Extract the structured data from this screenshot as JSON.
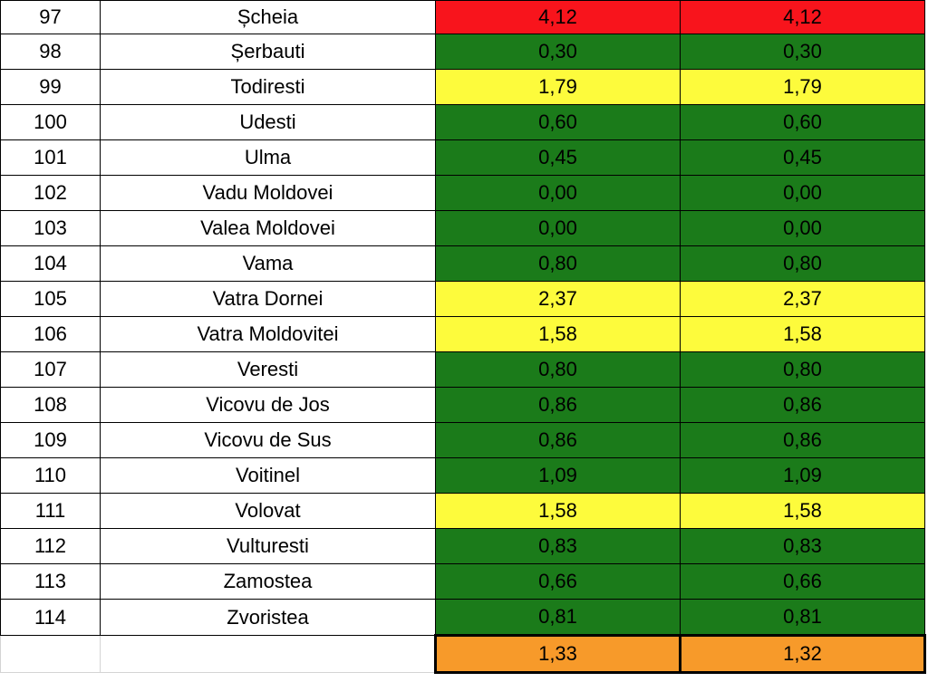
{
  "colors": {
    "red": "#f8141c",
    "green": "#1b7b1a",
    "yellow": "#fdfb3c",
    "orange": "#f79a2a"
  },
  "rows": [
    {
      "num": "97",
      "name": "Șcheia",
      "v1": "4,12",
      "v2": "4,12",
      "status": "red"
    },
    {
      "num": "98",
      "name": "Șerbauti",
      "v1": "0,30",
      "v2": "0,30",
      "status": "green"
    },
    {
      "num": "99",
      "name": "Todiresti",
      "v1": "1,79",
      "v2": "1,79",
      "status": "yellow"
    },
    {
      "num": "100",
      "name": "Udesti",
      "v1": "0,60",
      "v2": "0,60",
      "status": "green"
    },
    {
      "num": "101",
      "name": "Ulma",
      "v1": "0,45",
      "v2": "0,45",
      "status": "green"
    },
    {
      "num": "102",
      "name": "Vadu Moldovei",
      "v1": "0,00",
      "v2": "0,00",
      "status": "green"
    },
    {
      "num": "103",
      "name": "Valea Moldovei",
      "v1": "0,00",
      "v2": "0,00",
      "status": "green"
    },
    {
      "num": "104",
      "name": "Vama",
      "v1": "0,80",
      "v2": "0,80",
      "status": "green"
    },
    {
      "num": "105",
      "name": "Vatra Dornei",
      "v1": "2,37",
      "v2": "2,37",
      "status": "yellow"
    },
    {
      "num": "106",
      "name": "Vatra Moldovitei",
      "v1": "1,58",
      "v2": "1,58",
      "status": "yellow"
    },
    {
      "num": "107",
      "name": "Veresti",
      "v1": "0,80",
      "v2": "0,80",
      "status": "green"
    },
    {
      "num": "108",
      "name": "Vicovu de Jos",
      "v1": "0,86",
      "v2": "0,86",
      "status": "green"
    },
    {
      "num": "109",
      "name": "Vicovu de Sus",
      "v1": "0,86",
      "v2": "0,86",
      "status": "green"
    },
    {
      "num": "110",
      "name": "Voitinel",
      "v1": "1,09",
      "v2": "1,09",
      "status": "green"
    },
    {
      "num": "111",
      "name": "Volovat",
      "v1": "1,58",
      "v2": "1,58",
      "status": "yellow"
    },
    {
      "num": "112",
      "name": "Vulturesti",
      "v1": "0,83",
      "v2": "0,83",
      "status": "green"
    },
    {
      "num": "113",
      "name": "Zamostea",
      "v1": "0,66",
      "v2": "0,66",
      "status": "green"
    },
    {
      "num": "114",
      "name": "Zvoristea",
      "v1": "0,81",
      "v2": "0,81",
      "status": "green"
    }
  ],
  "totals": {
    "v1": "1,33",
    "v2": "1,32",
    "status": "orange"
  }
}
